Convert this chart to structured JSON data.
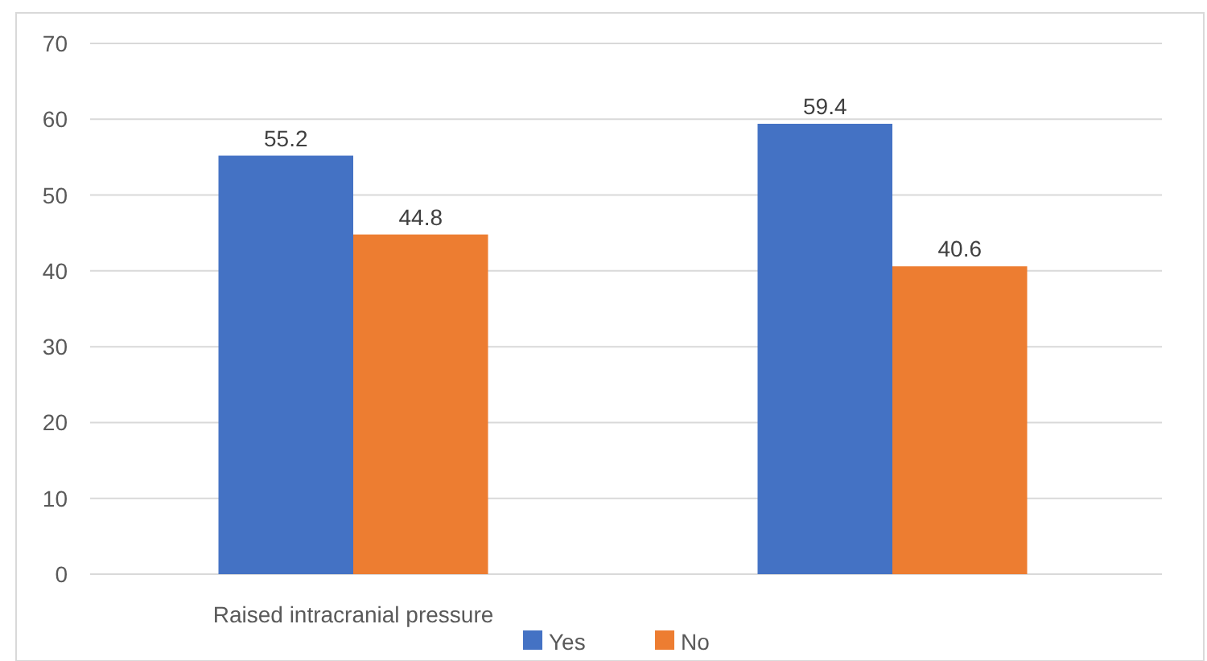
{
  "chart_data": {
    "type": "bar",
    "categories": [
      "Raised intracranial pressure",
      null
    ],
    "series": [
      {
        "name": "Yes",
        "color": "#4472c4",
        "values": [
          55.2,
          59.4
        ]
      },
      {
        "name": "No",
        "color": "#ed7d31",
        "values": [
          44.8,
          40.6
        ]
      }
    ],
    "ylim": [
      0,
      70
    ],
    "yticks": [
      0,
      10,
      20,
      30,
      40,
      50,
      60,
      70
    ],
    "grid": "y",
    "data_labels": true,
    "legend": "bottom"
  }
}
